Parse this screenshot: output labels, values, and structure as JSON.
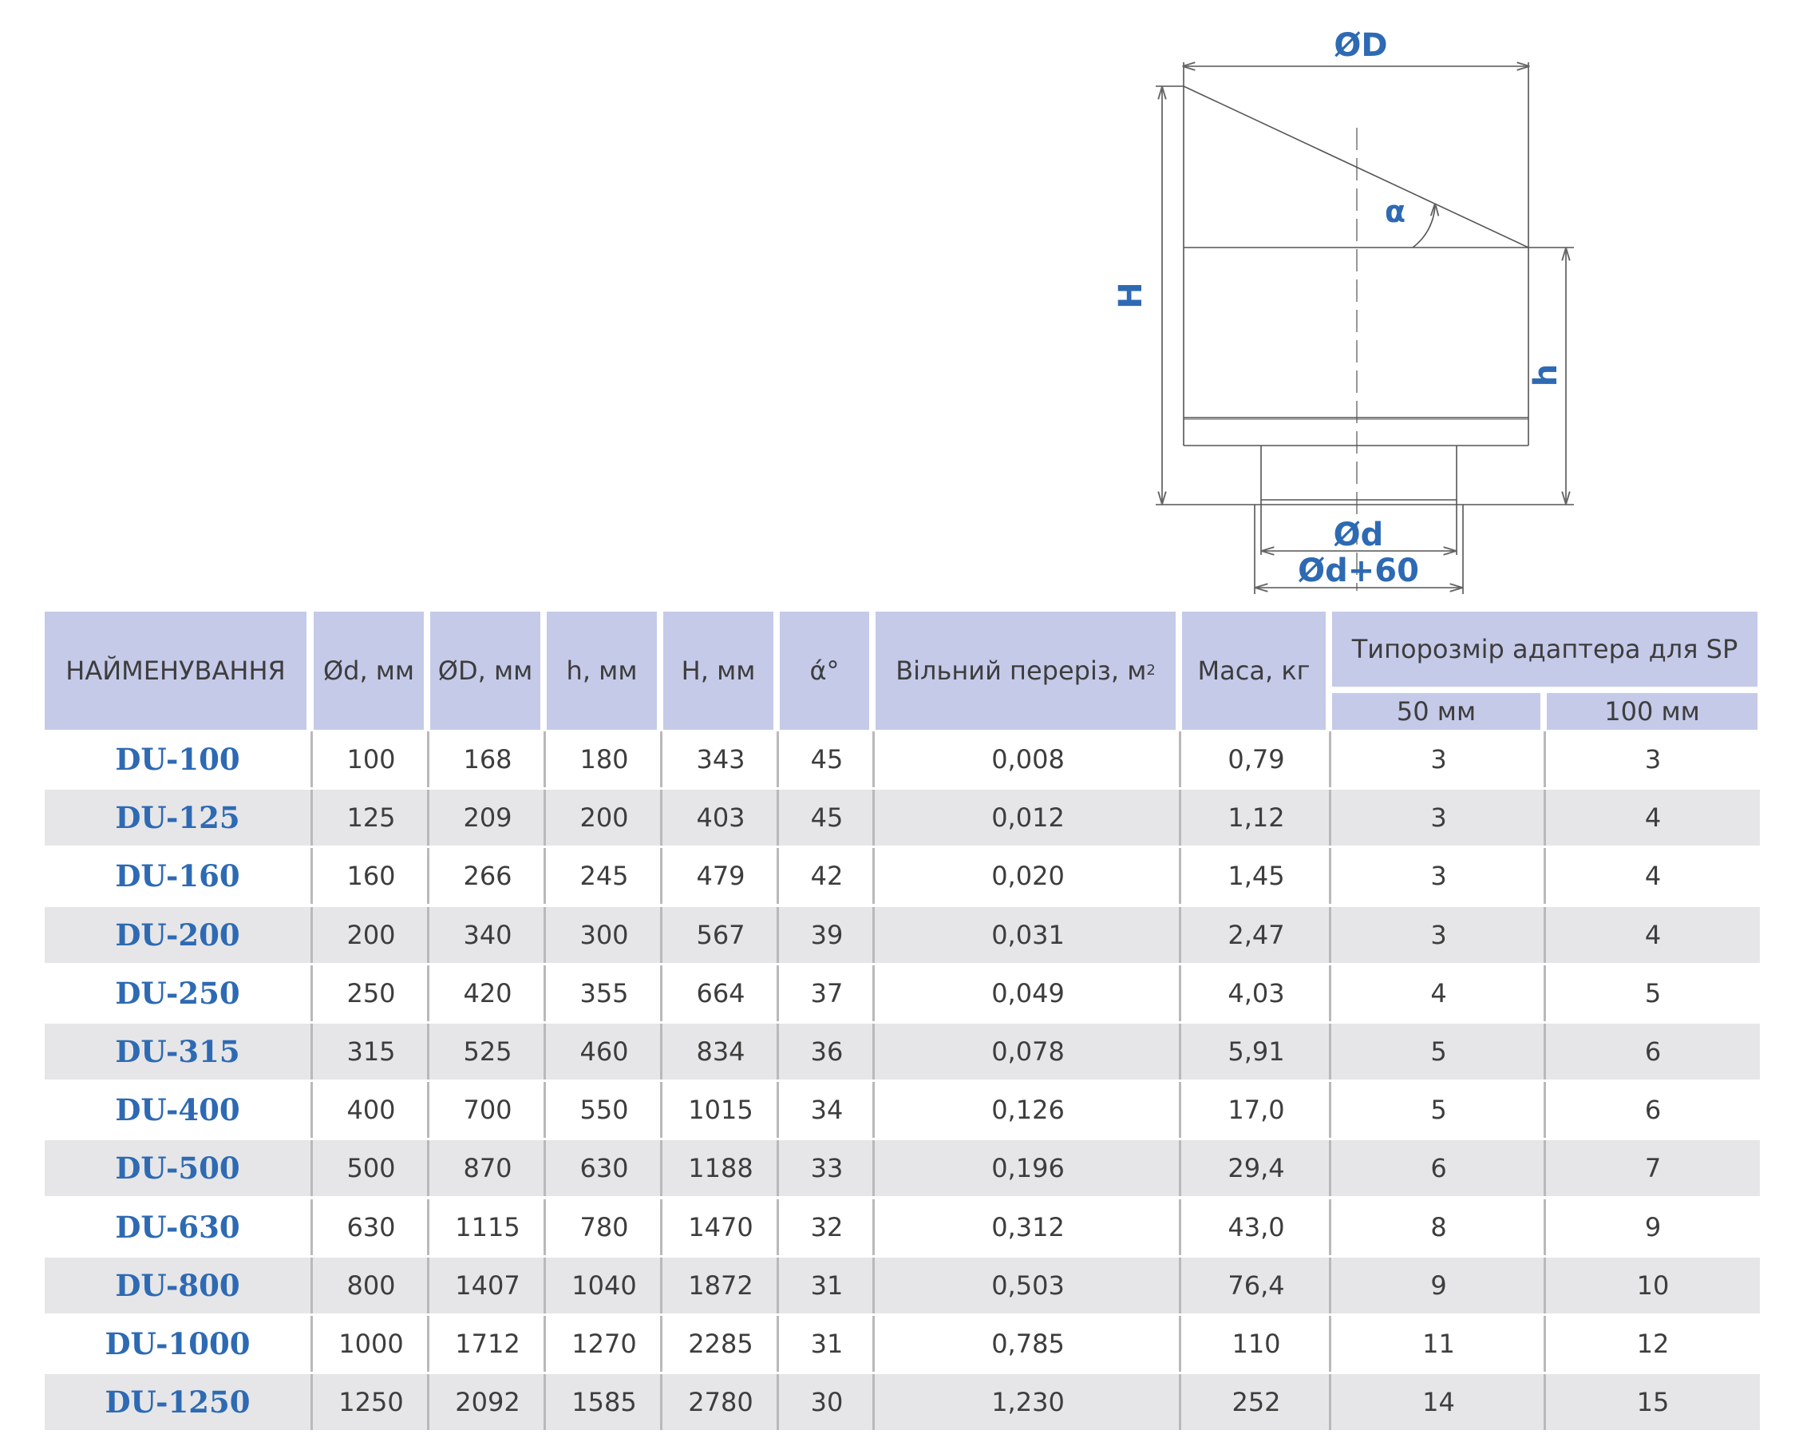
{
  "drawing": {
    "labels": {
      "outer_diameter": "ØD",
      "total_height": "H",
      "angle": "α",
      "body_height": "h",
      "inner_diameter": "Ød",
      "flange_diameter": "Ød+60"
    }
  },
  "table": {
    "headers": {
      "name": "НАЙМЕНУВАННЯ",
      "d": "Ød, мм",
      "D": "ØD, мм",
      "h": "h, мм",
      "H": "H, мм",
      "alpha": "ά°",
      "free_section": "Вільний переріз, м",
      "free_section_sup": "2",
      "mass": "Маса, кг",
      "adapter_group": "Типорозмір адаптера для SP",
      "adapter_50": "50 мм",
      "adapter_100": "100 мм"
    },
    "rows": [
      {
        "name": "DU-100",
        "d": "100",
        "D": "168",
        "h": "180",
        "H": "343",
        "alpha": "45",
        "free": "0,008",
        "mass": "0,79",
        "a50": "3",
        "a100": "3"
      },
      {
        "name": "DU-125",
        "d": "125",
        "D": "209",
        "h": "200",
        "H": "403",
        "alpha": "45",
        "free": "0,012",
        "mass": "1,12",
        "a50": "3",
        "a100": "4"
      },
      {
        "name": "DU-160",
        "d": "160",
        "D": "266",
        "h": "245",
        "H": "479",
        "alpha": "42",
        "free": "0,020",
        "mass": "1,45",
        "a50": "3",
        "a100": "4"
      },
      {
        "name": "DU-200",
        "d": "200",
        "D": "340",
        "h": "300",
        "H": "567",
        "alpha": "39",
        "free": "0,031",
        "mass": "2,47",
        "a50": "3",
        "a100": "4"
      },
      {
        "name": "DU-250",
        "d": "250",
        "D": "420",
        "h": "355",
        "H": "664",
        "alpha": "37",
        "free": "0,049",
        "mass": "4,03",
        "a50": "4",
        "a100": "5"
      },
      {
        "name": "DU-315",
        "d": "315",
        "D": "525",
        "h": "460",
        "H": "834",
        "alpha": "36",
        "free": "0,078",
        "mass": "5,91",
        "a50": "5",
        "a100": "6"
      },
      {
        "name": "DU-400",
        "d": "400",
        "D": "700",
        "h": "550",
        "H": "1015",
        "alpha": "34",
        "free": "0,126",
        "mass": "17,0",
        "a50": "5",
        "a100": "6"
      },
      {
        "name": "DU-500",
        "d": "500",
        "D": "870",
        "h": "630",
        "H": "1188",
        "alpha": "33",
        "free": "0,196",
        "mass": "29,4",
        "a50": "6",
        "a100": "7"
      },
      {
        "name": "DU-630",
        "d": "630",
        "D": "1115",
        "h": "780",
        "H": "1470",
        "alpha": "32",
        "free": "0,312",
        "mass": "43,0",
        "a50": "8",
        "a100": "9"
      },
      {
        "name": "DU-800",
        "d": "800",
        "D": "1407",
        "h": "1040",
        "H": "1872",
        "alpha": "31",
        "free": "0,503",
        "mass": "76,4",
        "a50": "9",
        "a100": "10"
      },
      {
        "name": "DU-1000",
        "d": "1000",
        "D": "1712",
        "h": "1270",
        "H": "2285",
        "alpha": "31",
        "free": "0,785",
        "mass": "110",
        "a50": "11",
        "a100": "12"
      },
      {
        "name": "DU-1250",
        "d": "1250",
        "D": "2092",
        "h": "1585",
        "H": "2780",
        "alpha": "30",
        "free": "1,230",
        "mass": "252",
        "a50": "14",
        "a100": "15"
      }
    ]
  }
}
